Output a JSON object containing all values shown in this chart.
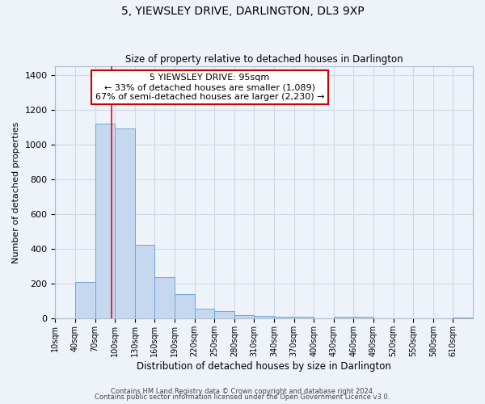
{
  "title": "5, YIEWSLEY DRIVE, DARLINGTON, DL3 9XP",
  "subtitle": "Size of property relative to detached houses in Darlington",
  "xlabel": "Distribution of detached houses by size in Darlington",
  "ylabel": "Number of detached properties",
  "bar_color": "#c5d8f0",
  "bar_edge_color": "#6fa8d5",
  "bin_labels": [
    "10sqm",
    "40sqm",
    "70sqm",
    "100sqm",
    "130sqm",
    "160sqm",
    "190sqm",
    "220sqm",
    "250sqm",
    "280sqm",
    "310sqm",
    "340sqm",
    "370sqm",
    "400sqm",
    "430sqm",
    "460sqm",
    "490sqm",
    "520sqm",
    "550sqm",
    "580sqm",
    "610sqm"
  ],
  "bar_values": [
    0,
    210,
    1120,
    1095,
    425,
    240,
    140,
    60,
    45,
    20,
    15,
    10,
    10,
    0,
    10,
    10,
    0,
    0,
    0,
    0,
    5
  ],
  "bin_edges": [
    10,
    40,
    70,
    100,
    130,
    160,
    190,
    220,
    250,
    280,
    310,
    340,
    370,
    400,
    430,
    460,
    490,
    520,
    550,
    580,
    610,
    640
  ],
  "ylim": [
    0,
    1450
  ],
  "yticks": [
    0,
    200,
    400,
    600,
    800,
    1000,
    1200,
    1400
  ],
  "red_line_x": 95,
  "annotation_title": "5 YIEWSLEY DRIVE: 95sqm",
  "annotation_line1": "← 33% of detached houses are smaller (1,089)",
  "annotation_line2": "67% of semi-detached houses are larger (2,230) →",
  "annotation_box_color": "#ffffff",
  "annotation_box_edge": "#cc0000",
  "grid_color": "#d0d8e8",
  "background_color": "#eef2f9",
  "footer1": "Contains HM Land Registry data © Crown copyright and database right 2024.",
  "footer2": "Contains public sector information licensed under the Open Government Licence v3.0."
}
